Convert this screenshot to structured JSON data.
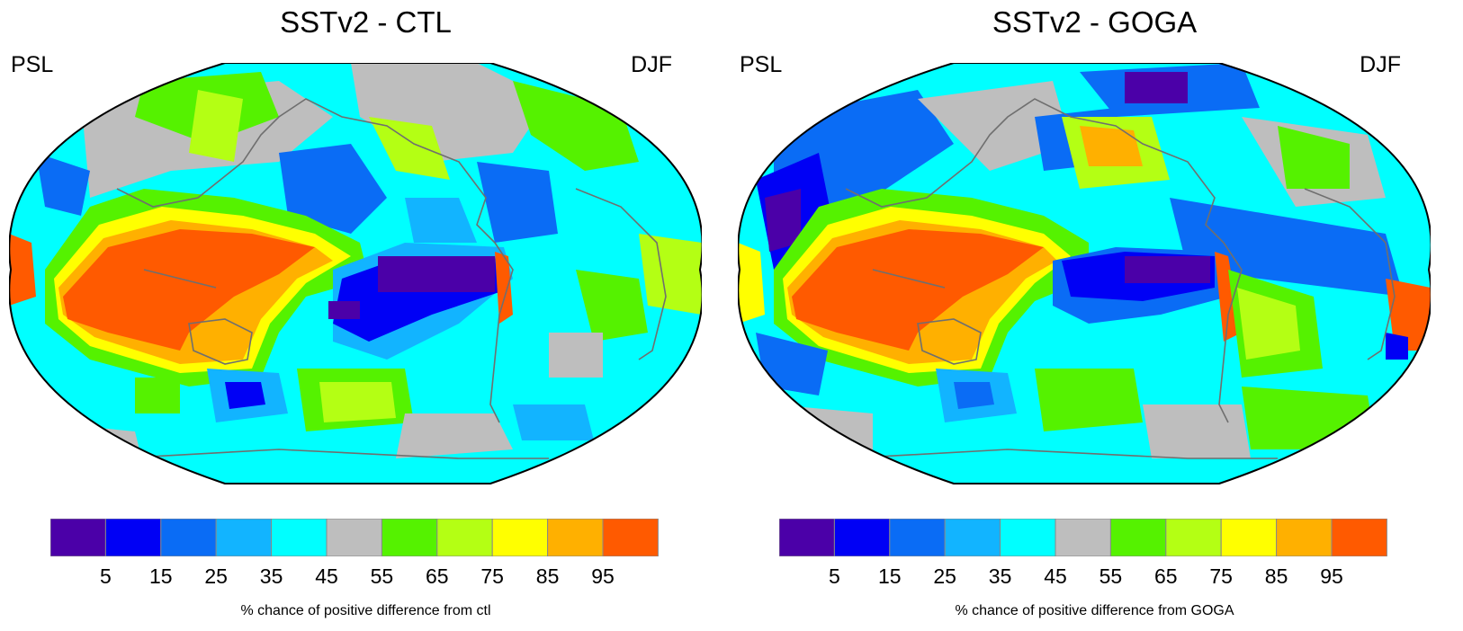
{
  "panels": [
    {
      "title": "SSTv2 - CTL",
      "left_label": "PSL",
      "right_label": "DJF",
      "colorbar_label": "% chance of positive difference from ctl"
    },
    {
      "title": "SSTv2 - GOGA",
      "left_label": "PSL",
      "right_label": "DJF",
      "colorbar_label": "% chance of positive difference from GOGA"
    }
  ],
  "colorbar": {
    "ticks": [
      "5",
      "15",
      "25",
      "35",
      "45",
      "55",
      "65",
      "75",
      "85",
      "95"
    ],
    "colors": [
      "#4b00a8",
      "#0000f5",
      "#0a6cf5",
      "#12b4ff",
      "#00ffff",
      "#bebebe",
      "#55f200",
      "#b4ff14",
      "#ffff00",
      "#ffb000",
      "#ff5a00"
    ]
  },
  "map_colors": {
    "ocean_base": "#00ffff",
    "land_outline": "#6f6f6f"
  }
}
